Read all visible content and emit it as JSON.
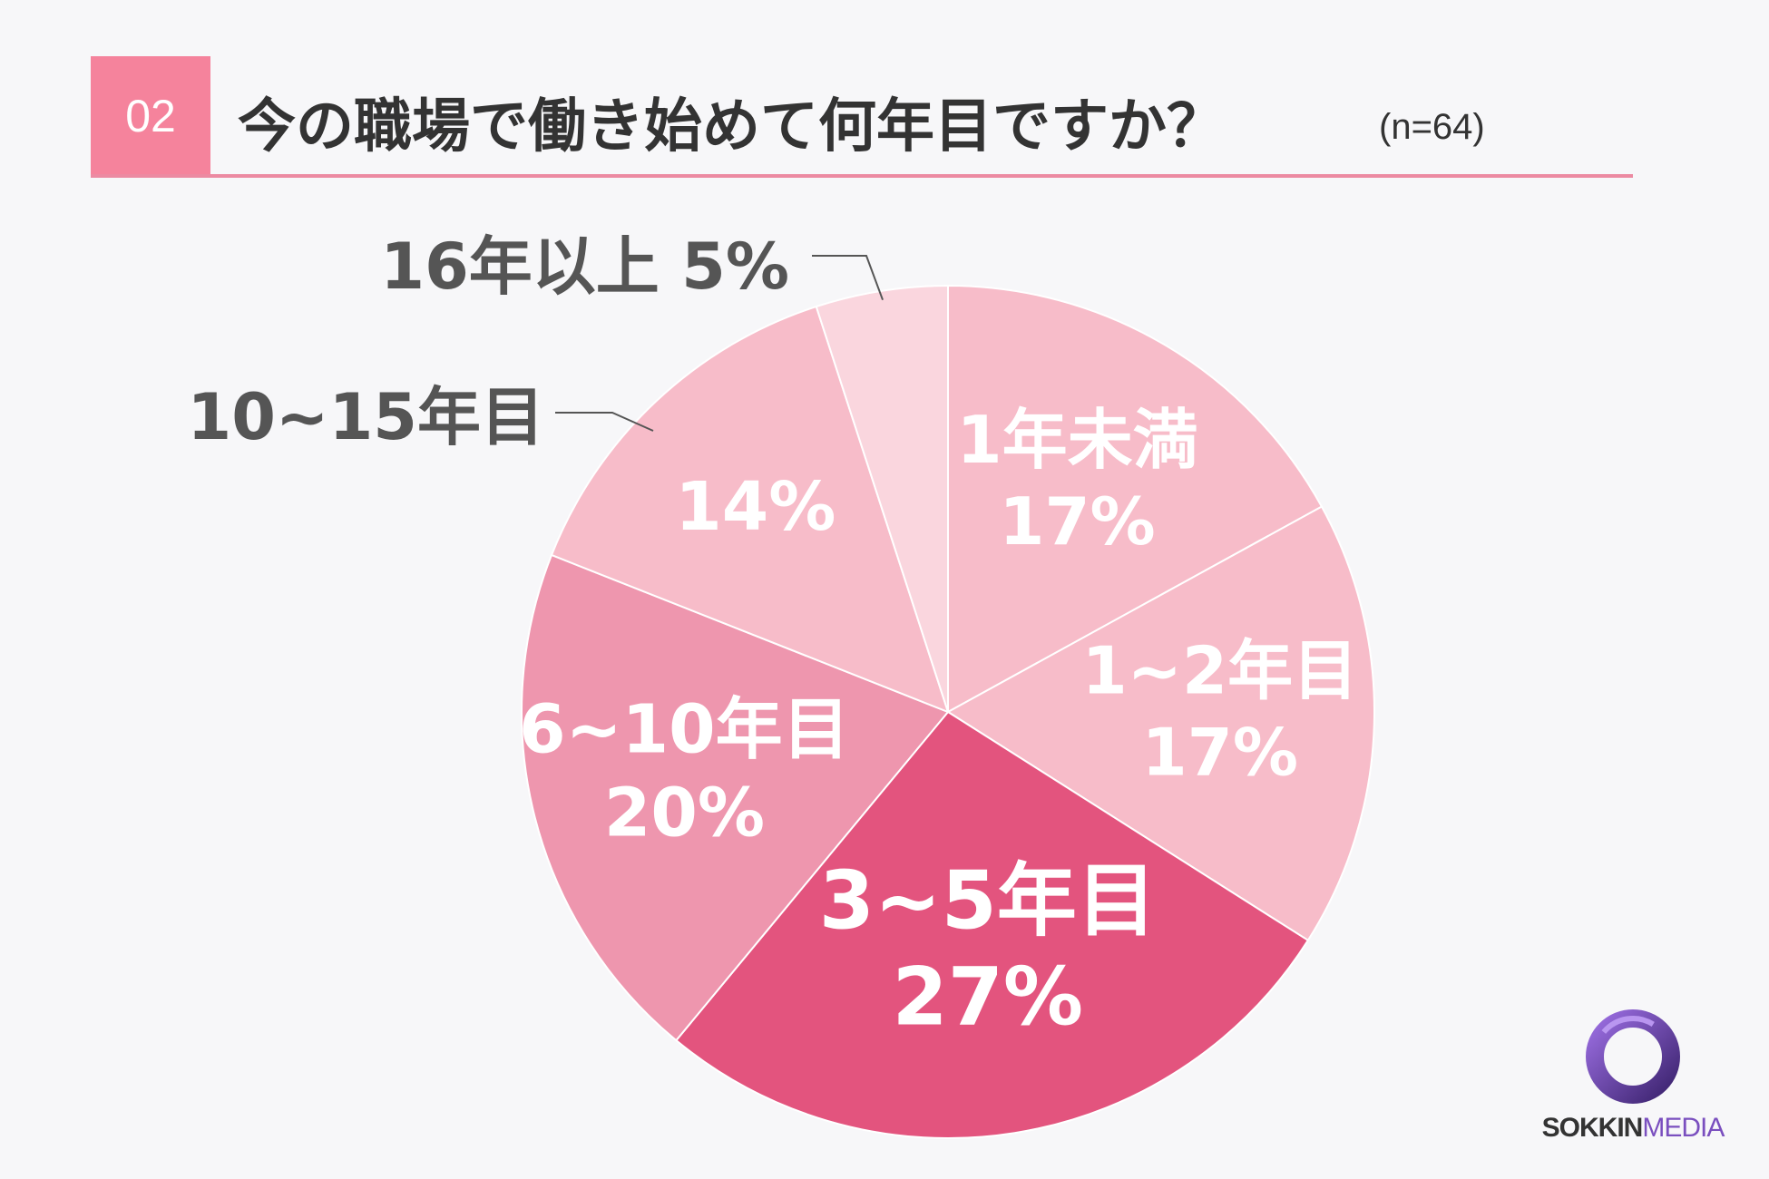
{
  "header": {
    "question_number": "02",
    "title": "今の職場で働き始めて何年目ですか？",
    "sample": "(n=64)"
  },
  "chart_data": {
    "type": "pie",
    "title": "今の職場で働き始めて何年目ですか？",
    "categories": [
      "1年未満",
      "1~2年目",
      "3~5年目",
      "6~10年目",
      "10~15年目",
      "16年以上"
    ],
    "values": [
      17,
      17,
      27,
      20,
      14,
      5
    ],
    "value_labels": [
      "17%",
      "17%",
      "27%",
      "20%",
      "14%",
      "5%"
    ],
    "colors": [
      "#f7bcc9",
      "#f7bcc9",
      "#e3547e",
      "#ee96ae",
      "#f7bcc9",
      "#fad6de"
    ],
    "outside_labels": [
      "16年以上 5%",
      "10~15年目"
    ],
    "start_angle_deg": 0,
    "direction": "clockwise"
  },
  "logo": {
    "text_bold": "SOKKIN",
    "text_light": "MEDIA"
  }
}
